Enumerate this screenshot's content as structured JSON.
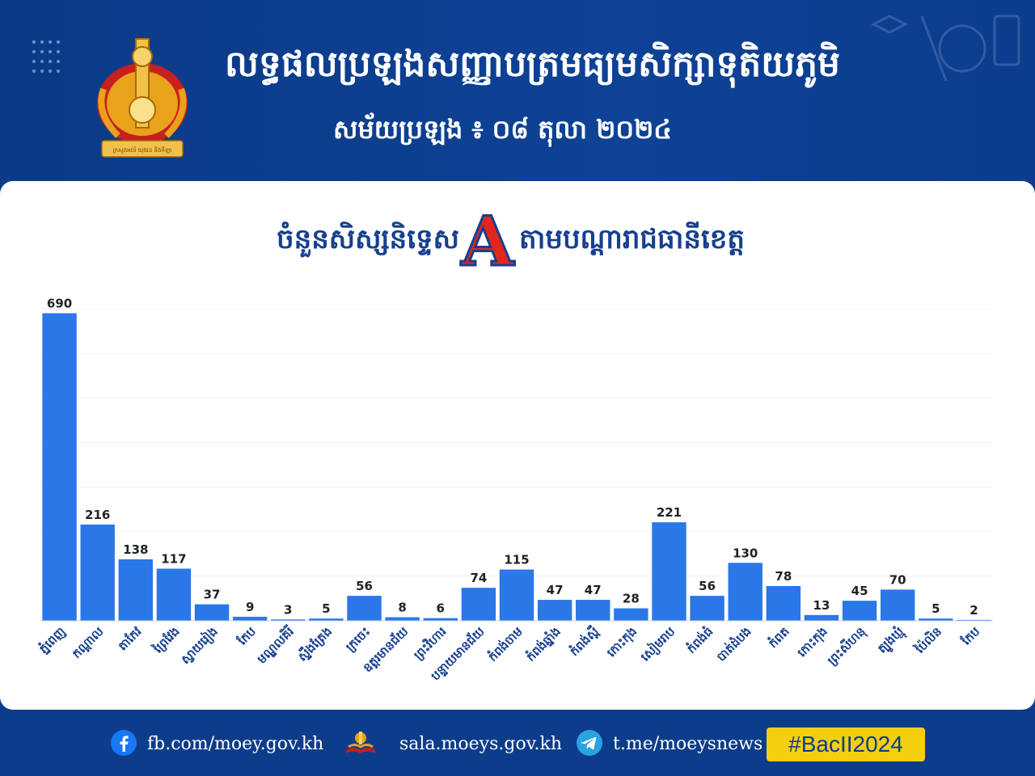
{
  "header": {
    "title": "លទ្ធផលប្រឡងសញ្ញាបត្រមធ្យមសិក្សាទុតិយភូមិ",
    "date_label": "សម័យប្រឡង ៖ ០៨ តុលា ២០២៤",
    "emblem_text": "ក្រសួងអប់រំ យុវជន និងកីឡា"
  },
  "chart_title": {
    "left": "ចំនួនសិស្សនិទ្ទេស",
    "grade": "A",
    "right": "តាមបណ្ដារាជធានីខេត្ត"
  },
  "chart_data": {
    "type": "bar",
    "title": "ចំនួនសិស្សនិទ្ទេស A តាមបណ្ដារាជធានីខេត្ត",
    "categories": [
      "ភ្នំពេញ",
      "កណ្ដាល",
      "តាកែវ",
      "ព្រៃវែង",
      "ស្វាយរៀង",
      "កែប",
      "មណ្ឌលគិរី",
      "ស្ទឹងត្រែង",
      "ក្រចេះ",
      "ឧត្ដរមានជ័យ",
      "ព្រះវិហារ",
      "បន្ទាយមានជ័យ",
      "កំពង់ចាម",
      "កំពង់ឆ្នាំង",
      "កំពង់ស្ពឺ",
      "កោះកុង",
      "សៀមរាប",
      "កំពង់ធំ",
      "បាត់ដំបង",
      "កំពត",
      "កោះកុង",
      "ព្រះសីហនុ",
      "ត្បូងឃ្មុំ",
      "ប៉ៃលិន",
      "កែប"
    ],
    "values": [
      690,
      216,
      138,
      117,
      37,
      9,
      3,
      5,
      56,
      8,
      6,
      74,
      115,
      47,
      47,
      28,
      221,
      56,
      130,
      78,
      13,
      45,
      70,
      5,
      2
    ],
    "series_color": "#2a77e8",
    "grid": true,
    "ylim": [
      0,
      700
    ]
  },
  "footer": {
    "facebook": "fb.com/moey.gov.kh",
    "sala": "sala.moeys.gov.kh",
    "telegram": "t.me/moeysnews",
    "hashtag": "#BacII2024",
    "facebook_icon": "facebook-icon",
    "sala_icon": "book-logo-icon",
    "telegram_icon": "telegram-icon",
    "brand_color": "#0d3d8a",
    "accent_color": "#f3cf10"
  }
}
